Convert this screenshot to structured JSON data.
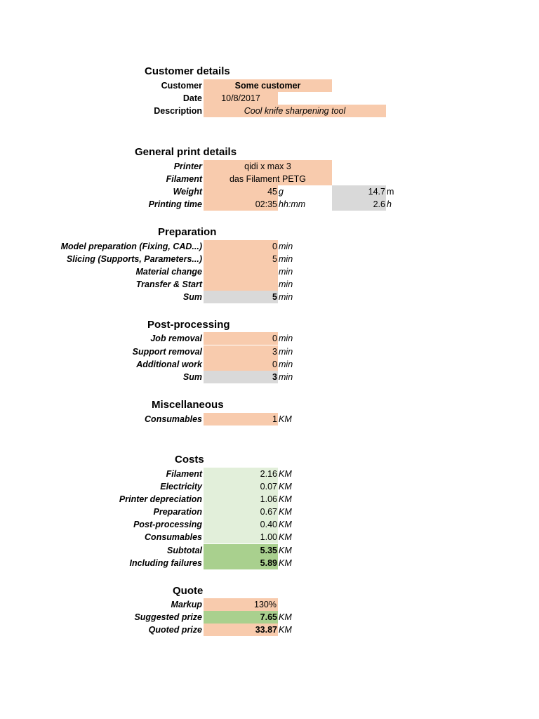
{
  "customer_details": {
    "title": "Customer details",
    "customer_label": "Customer",
    "customer_value": "Some customer",
    "date_label": "Date",
    "date_value": "10/8/2017",
    "description_label": "Description",
    "description_value": "Cool knife sharpening tool"
  },
  "general": {
    "title": "General print details",
    "printer_label": "Printer",
    "printer_value": "qidi x max 3",
    "filament_label": "Filament",
    "filament_value": "das Filament PETG",
    "weight_label": "Weight",
    "weight_value": "45",
    "weight_unit": "g",
    "length_value": "14.7",
    "length_unit": "m",
    "time_label": "Printing time",
    "time_value": "02:35",
    "time_unit": "hh:mm",
    "hours_value": "2.6",
    "hours_unit": "h"
  },
  "preparation": {
    "title": "Preparation",
    "rows": [
      {
        "label": "Model preparation (Fixing, CAD...)",
        "value": "0",
        "unit": "min"
      },
      {
        "label": "Slicing (Supports, Parameters...)",
        "value": "5",
        "unit": "min"
      },
      {
        "label": "Material change",
        "value": "",
        "unit": "min"
      },
      {
        "label": "Transfer & Start",
        "value": "",
        "unit": "min"
      }
    ],
    "sum_label": "Sum",
    "sum_value": "5",
    "sum_unit": "min"
  },
  "post_processing": {
    "title": "Post-processing",
    "rows": [
      {
        "label": "Job removal",
        "value": "0",
        "unit": "min"
      },
      {
        "label": "Support removal",
        "value": "3",
        "unit": "min"
      },
      {
        "label": "Additional work",
        "value": "0",
        "unit": "min"
      }
    ],
    "sum_label": "Sum",
    "sum_value": "3",
    "sum_unit": "min"
  },
  "misc": {
    "title": "Miscellaneous",
    "consumables_label": "Consumables",
    "consumables_value": "1",
    "consumables_unit": "KM"
  },
  "costs": {
    "title": "Costs",
    "rows": [
      {
        "label": "Filament",
        "value": "2.16",
        "unit": "KM"
      },
      {
        "label": "Electricity",
        "value": "0.07",
        "unit": "KM"
      },
      {
        "label": "Printer depreciation",
        "value": "1.06",
        "unit": "KM"
      },
      {
        "label": "Preparation",
        "value": "0.67",
        "unit": "KM"
      },
      {
        "label": "Post-processing",
        "value": "0.40",
        "unit": "KM"
      },
      {
        "label": "Consumables",
        "value": "1.00",
        "unit": "KM"
      }
    ],
    "subtotal_label": "Subtotal",
    "subtotal_value": "5.35",
    "subtotal_unit": "KM",
    "failures_label": "Including failures",
    "failures_value": "5.89",
    "failures_unit": "KM"
  },
  "quote": {
    "title": "Quote",
    "markup_label": "Markup",
    "markup_value": "130%",
    "suggested_label": "Suggested prize",
    "suggested_value": "7.65",
    "suggested_unit": "KM",
    "quoted_label": "Quoted prize",
    "quoted_value": "33.87",
    "quoted_unit": "KM"
  },
  "colors": {
    "input": "#f8cbad",
    "computed": "#d9d9d9",
    "cost": "#e2efda",
    "total": "#a9d08e"
  }
}
